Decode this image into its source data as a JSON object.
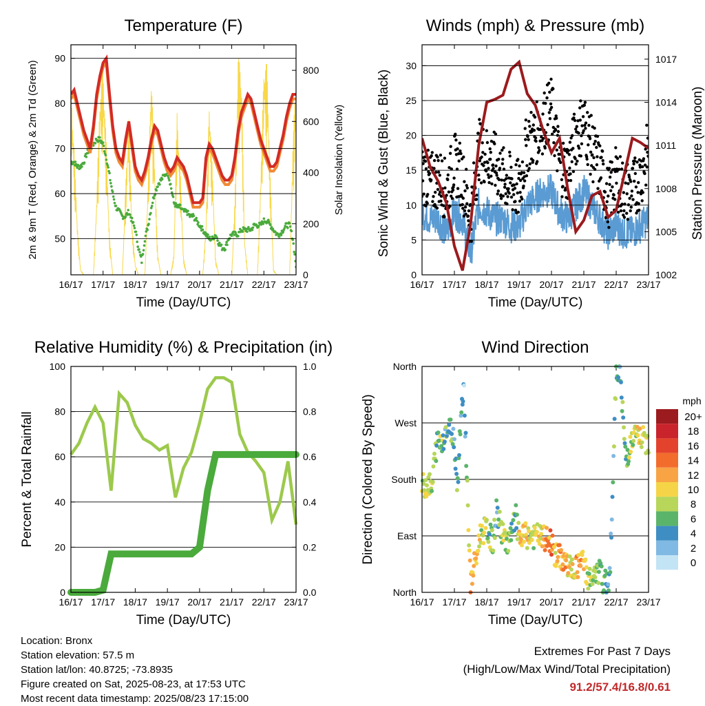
{
  "x_ticks": [
    "16/17",
    "17/17",
    "18/17",
    "19/17",
    "20/17",
    "21/17",
    "22/17",
    "23/17"
  ],
  "panels": {
    "temperature": {
      "title": "Temperature (F)",
      "xlabel": "Time (Day/UTC)",
      "ylabel_left": "2m & 9m T (Red, Orange) & 2m Td (Green)",
      "ylabel_right": "Solar Insolation (Yellow)",
      "yticks_left": [
        "90",
        "80",
        "70",
        "60",
        "50"
      ],
      "yticks_right": [
        "800",
        "600",
        "400",
        "200",
        "0"
      ]
    },
    "winds": {
      "title": "Winds (mph) & Pressure (mb)",
      "xlabel": "Time (Day/UTC)",
      "ylabel_left": "Sonic Wind & Gust (Blue, Black)",
      "ylabel_right": "Station Pressure (Maroon)",
      "yticks_left": [
        "30",
        "25",
        "20",
        "15",
        "10",
        "5",
        "0"
      ],
      "yticks_right": [
        "1017",
        "1014",
        "1011",
        "1008",
        "1005",
        "1002"
      ]
    },
    "humidity": {
      "title": "Relative Humidity (%) & Precipitation (in)",
      "xlabel": "Time (Day/UTC)",
      "ylabel_left": "Percent & Total Rainfall",
      "yticks_left": [
        "100",
        "80",
        "60",
        "40",
        "20",
        "0"
      ],
      "yticks_right": [
        "1.0",
        "0.8",
        "0.6",
        "0.4",
        "0.2",
        "0.0"
      ]
    },
    "direction": {
      "title": "Wind Direction",
      "xlabel": "Time (Day/UTC)",
      "ylabel_left": "Direction (Colored By Speed)",
      "yticks_left": [
        "North",
        "West",
        "South",
        "East",
        "North"
      ],
      "colorbar_title": "mph",
      "colorbar_labels": [
        "20+",
        "18",
        "16",
        "14",
        "12",
        "10",
        "8",
        "6",
        "4",
        "2",
        "0"
      ],
      "colorbar_colors": [
        "#9b1b1e",
        "#c9232b",
        "#e3432c",
        "#f26d2c",
        "#f8a445",
        "#f5d547",
        "#b7d65a",
        "#5ab56a",
        "#3e8ec4",
        "#80b9e3",
        "#c3e4f5"
      ]
    }
  },
  "footer": {
    "location": "Location: Bronx",
    "elevation": "Station elevation: 57.5 m",
    "latlon": "Station lat/lon: 40.8725; -73.8935",
    "created": "Figure created on Sat, 2025-08-23, at 17:53 UTC",
    "recent": "Most recent data timestamp: 2025/08/23 17:15:00",
    "extremes_title": "Extremes For Past 7 Days",
    "extremes_sub": "(High/Low/Max Wind/Total Precipitation)",
    "extremes_values": "91.2/57.4/16.8/0.61"
  },
  "colors": {
    "temp2m": "#d22b26",
    "temp9m": "#f08a35",
    "dewpoint": "#4aaa3c",
    "solar": "#f8d84a",
    "gust": "#000000",
    "wind": "#5a9bd3",
    "pressure": "#9b1b1e",
    "rh": "#9cc94c",
    "precip": "#4aaa3c"
  },
  "chart_data": [
    {
      "type": "line",
      "title": "Temperature (F)",
      "xlabel": "Time (Day/UTC)",
      "ylabel": "2m & 9m T (Red, Orange) & 2m Td (Green)",
      "y2label": "Solar Insolation (Yellow)",
      "x": [
        0,
        0.1,
        0.2,
        0.3,
        0.4,
        0.5,
        0.6,
        0.7,
        0.8,
        0.9,
        1.0,
        1.1,
        1.2,
        1.3,
        1.4,
        1.5,
        1.6,
        1.7,
        1.8,
        1.9,
        2.0,
        2.1,
        2.2,
        2.3,
        2.4,
        2.5,
        2.6,
        2.7,
        2.8,
        2.9,
        3.0,
        3.1,
        3.2,
        3.3,
        3.4,
        3.5,
        3.6,
        3.7,
        3.8,
        3.9,
        4.0,
        4.1,
        4.2,
        4.3,
        4.4,
        4.5,
        4.6,
        4.7,
        4.8,
        4.9,
        5.0,
        5.1,
        5.2,
        5.3,
        5.4,
        5.5,
        5.6,
        5.7,
        5.8,
        5.9,
        6.0,
        6.1,
        6.2,
        6.3,
        6.4,
        6.5,
        6.6,
        6.7,
        6.8,
        6.9,
        7.0
      ],
      "ylim": [
        42,
        93
      ],
      "y2lim": [
        0,
        900
      ],
      "series": [
        {
          "name": "2m T",
          "axis": "left",
          "values": [
            82,
            83,
            80,
            77,
            74,
            72,
            70,
            75,
            82,
            86,
            89,
            90,
            82,
            75,
            70,
            68,
            67,
            72,
            76,
            71,
            66,
            64,
            63,
            65,
            68,
            72,
            75,
            74,
            71,
            68,
            66,
            65,
            66,
            68,
            67,
            66,
            64,
            61,
            58,
            58,
            58,
            59,
            68,
            71,
            70,
            68,
            66,
            64,
            63,
            63,
            64,
            68,
            74,
            78,
            80,
            82,
            81,
            78,
            75,
            72,
            70,
            68,
            66,
            66,
            67,
            70,
            73,
            77,
            80,
            82,
            82
          ]
        },
        {
          "name": "9m T",
          "axis": "left",
          "values": [
            81,
            82,
            79,
            76,
            73,
            71,
            69,
            74,
            81,
            85,
            88,
            89,
            81,
            74,
            69,
            67,
            66,
            71,
            75,
            70,
            65,
            63,
            62,
            64,
            67,
            71,
            74,
            73,
            70,
            67,
            65,
            64,
            65,
            67,
            66,
            65,
            63,
            60,
            57,
            57,
            57,
            58,
            67,
            70,
            69,
            67,
            65,
            63,
            62,
            62,
            63,
            67,
            73,
            77,
            79,
            81,
            80,
            77,
            74,
            71,
            69,
            67,
            65,
            65,
            66,
            69,
            72,
            76,
            79,
            81,
            81
          ]
        },
        {
          "name": "2m Td",
          "axis": "left",
          "values": [
            67,
            67,
            66,
            66,
            67,
            69,
            70,
            71,
            72,
            72,
            71,
            68,
            64,
            60,
            57,
            56,
            55,
            55,
            56,
            54,
            52,
            48,
            45,
            50,
            53,
            57,
            60,
            62,
            63,
            64,
            65,
            62,
            58,
            57,
            57,
            56,
            56,
            55,
            55,
            54,
            53,
            52,
            51,
            50,
            50,
            51,
            49,
            48,
            48,
            50,
            51,
            51,
            51,
            52,
            52,
            52,
            52,
            53,
            53,
            53,
            54,
            54,
            53,
            52,
            51,
            51,
            52,
            53,
            53,
            50,
            44
          ]
        },
        {
          "name": "Solar Insolation",
          "axis": "right",
          "values": [
            750,
            500,
            200,
            20,
            0,
            0,
            0,
            0,
            300,
            700,
            820,
            520,
            150,
            0,
            0,
            0,
            0,
            350,
            620,
            200,
            40,
            0,
            0,
            0,
            380,
            800,
            450,
            80,
            0,
            0,
            0,
            0,
            80,
            640,
            420,
            70,
            0,
            0,
            0,
            0,
            0,
            0,
            200,
            690,
            420,
            60,
            0,
            0,
            0,
            0,
            0,
            300,
            860,
            800,
            140,
            0,
            0,
            0,
            0,
            380,
            820,
            830,
            380,
            20,
            0,
            0,
            0,
            0,
            0,
            500,
            820
          ]
        }
      ]
    },
    {
      "type": "scatter",
      "title": "Winds (mph) & Pressure (mb)",
      "xlabel": "Time (Day/UTC)",
      "ylabel": "Sonic Wind & Gust (Blue, Black)",
      "y2label": "Station Pressure (Maroon)",
      "x": [
        0,
        0.25,
        0.5,
        0.75,
        1.0,
        1.25,
        1.5,
        1.75,
        2.0,
        2.25,
        2.5,
        2.75,
        3.0,
        3.25,
        3.5,
        3.75,
        4.0,
        4.25,
        4.5,
        4.75,
        5.0,
        5.25,
        5.5,
        5.75,
        6.0,
        6.25,
        6.5,
        6.75,
        7.0
      ],
      "ylim": [
        0,
        33
      ],
      "y2lim": [
        1002,
        1018
      ],
      "series": [
        {
          "name": "Gust",
          "axis": "left",
          "values": [
            15,
            13,
            14,
            12,
            16,
            14,
            8,
            18,
            17,
            16,
            14,
            13,
            12,
            19,
            20,
            22,
            24,
            16,
            15,
            20,
            22,
            18,
            15,
            11,
            14,
            12,
            12,
            14,
            18
          ]
        },
        {
          "name": "Wind",
          "axis": "left",
          "values": [
            9,
            8,
            8,
            6,
            9,
            8,
            3,
            10,
            9,
            8,
            8,
            7,
            7,
            10,
            11,
            12,
            12,
            9,
            8,
            10,
            12,
            10,
            8,
            6,
            7,
            6,
            6,
            7,
            8
          ]
        },
        {
          "name": "Station Pressure",
          "axis": "right",
          "values": [
            1011.5,
            1009.5,
            1008.5,
            1007,
            1004,
            1002.3,
            1005.5,
            1011,
            1014,
            1014.2,
            1014.5,
            1016.3,
            1016.8,
            1014.6,
            1013.8,
            1012,
            1010.5,
            1011.5,
            1008,
            1005,
            1005.8,
            1007.5,
            1007.8,
            1006,
            1006.5,
            1009,
            1011.5,
            1011.2,
            1010.8
          ]
        }
      ]
    },
    {
      "type": "line",
      "title": "Relative Humidity (%) & Precipitation (in)",
      "xlabel": "Time (Day/UTC)",
      "ylabel": "Percent & Total Rainfall",
      "x": [
        0,
        0.25,
        0.5,
        0.75,
        1.0,
        1.25,
        1.5,
        1.75,
        2.0,
        2.25,
        2.5,
        2.75,
        3.0,
        3.25,
        3.5,
        3.75,
        4.0,
        4.25,
        4.5,
        4.75,
        5.0,
        5.25,
        5.5,
        5.75,
        6.0,
        6.25,
        6.5,
        6.75,
        7.0
      ],
      "ylim": [
        0,
        100
      ],
      "y2lim": [
        0,
        1.0
      ],
      "series": [
        {
          "name": "Relative Humidity",
          "axis": "left",
          "values": [
            61,
            66,
            75,
            82,
            75,
            45,
            88,
            84,
            74,
            68,
            66,
            63,
            65,
            42,
            55,
            62,
            75,
            90,
            95,
            95,
            93,
            70,
            62,
            58,
            53,
            32,
            40,
            58,
            30
          ]
        },
        {
          "name": "Total Precipitation",
          "axis": "right",
          "values": [
            0,
            0,
            0,
            0,
            0.01,
            0.17,
            0.17,
            0.17,
            0.17,
            0.17,
            0.17,
            0.17,
            0.17,
            0.17,
            0.17,
            0.17,
            0.2,
            0.45,
            0.61,
            0.61,
            0.61,
            0.61,
            0.61,
            0.61,
            0.61,
            0.61,
            0.61,
            0.61,
            0.61
          ]
        }
      ]
    },
    {
      "type": "scatter",
      "title": "Wind Direction",
      "xlabel": "Time (Day/UTC)",
      "ylabel": "Direction (Colored By Speed)",
      "ylim": [
        0,
        360
      ],
      "yticks": {
        "North": 0,
        "East": 90,
        "South": 180,
        "West": 270
      },
      "series": [
        {
          "name": "Direction",
          "x": [
            0.1,
            0.2,
            0.3,
            0.4,
            0.5,
            0.6,
            0.7,
            0.9,
            1.0,
            1.1,
            1.2,
            1.3,
            1.5,
            1.6,
            1.7,
            1.8,
            2.0,
            2.2,
            2.3,
            2.5,
            2.7,
            2.9,
            3.0,
            3.2,
            3.4,
            3.6,
            3.8,
            4.0,
            4.1,
            4.3,
            4.5,
            4.6,
            4.8,
            5.0,
            5.1,
            5.3,
            5.5,
            5.6,
            5.8,
            6.0,
            6.1,
            6.3,
            6.4,
            6.6,
            6.8,
            6.9
          ],
          "values": [
            170,
            175,
            160,
            220,
            245,
            235,
            255,
            260,
            240,
            170,
            290,
            320,
            10,
            40,
            60,
            95,
            100,
            80,
            130,
            90,
            80,
            120,
            85,
            90,
            88,
            90,
            85,
            80,
            60,
            55,
            45,
            35,
            40,
            50,
            25,
            20,
            35,
            10,
            25,
            345,
            360,
            210,
            230,
            250,
            245,
            240
          ],
          "speed": [
            9,
            10,
            8,
            6,
            7,
            9,
            5,
            6,
            3,
            7,
            4,
            2,
            12,
            11,
            10,
            9,
            8,
            6,
            4,
            9,
            7,
            5,
            10,
            11,
            8,
            10,
            12,
            14,
            11,
            13,
            10,
            9,
            12,
            11,
            9,
            8,
            7,
            6,
            4,
            6,
            5,
            7,
            8,
            9,
            10,
            9
          ]
        }
      ]
    }
  ]
}
